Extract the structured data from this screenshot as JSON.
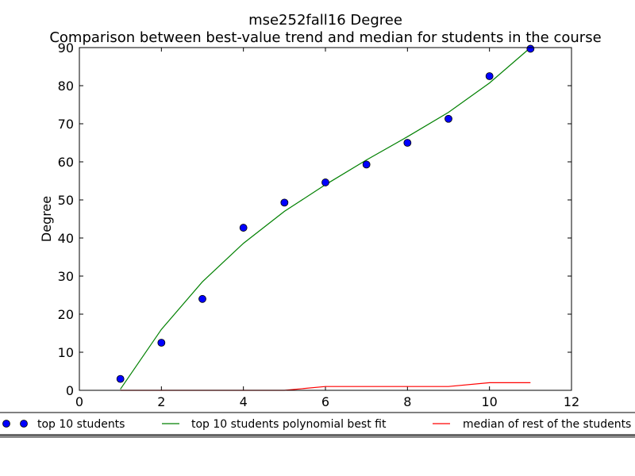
{
  "chart_data": {
    "type": "line",
    "title": "mse252fall16 Degree",
    "subtitle": "Comparison between best-value trend and median for students in the course",
    "xlabel": "",
    "ylabel": "Degree",
    "xlim": [
      0,
      12
    ],
    "ylim": [
      0,
      90
    ],
    "xticks": [
      0,
      2,
      4,
      6,
      8,
      10,
      12
    ],
    "yticks": [
      0,
      10,
      20,
      30,
      40,
      50,
      60,
      70,
      80,
      90
    ],
    "grid": false,
    "legend_position": "bottom",
    "series": [
      {
        "name": "top 10 students",
        "kind": "scatter",
        "color": "#0000ff",
        "x": [
          1,
          2,
          3,
          4,
          5,
          6,
          7,
          8,
          9,
          10,
          11
        ],
        "y": [
          3,
          12.5,
          24,
          42.7,
          49.3,
          54.6,
          59.3,
          65,
          71.3,
          82.5,
          89.7
        ]
      },
      {
        "name": "top 10 students polynomial best fit",
        "kind": "line",
        "color": "#008000",
        "x": [
          1,
          2,
          3,
          4,
          5,
          6,
          7,
          8,
          9,
          10,
          11
        ],
        "y": [
          0.3,
          16,
          28.5,
          38.6,
          47,
          54,
          60.5,
          66.6,
          73,
          80.7,
          90
        ]
      },
      {
        "name": "median of rest of the students",
        "kind": "line",
        "color": "#ff0000",
        "x": [
          1,
          2,
          3,
          4,
          5,
          6,
          7,
          8,
          9,
          10,
          11
        ],
        "y": [
          0,
          0,
          0,
          0,
          0,
          1,
          1,
          1,
          1,
          2,
          2
        ]
      }
    ]
  }
}
